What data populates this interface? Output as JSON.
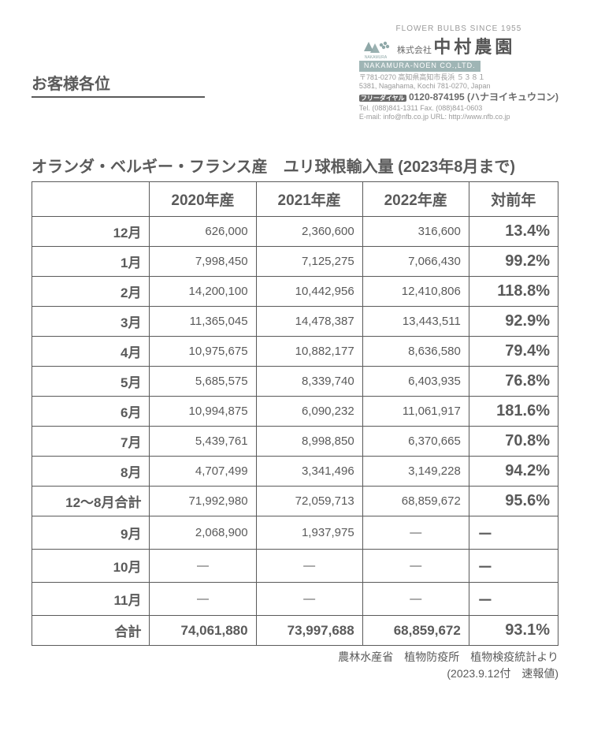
{
  "header": {
    "salutation": "お客様各位",
    "company": {
      "since": "FLOWER  BULBS  SINCE  1955",
      "prefix": "株式会社",
      "kanji": "中村農園",
      "en": "NAKAMURA-NOEN  CO.,LTD.",
      "addr1": "〒781-0270  高知県高知市長浜  ５３８１",
      "addr2": "5381, Nagahama, Kochi 781-0270, Japan",
      "tel_main": "0120-874195 (ハナヨイキュウコン)",
      "tel_sub": "Tel. (088)841-1311  Fax. (088)841-0603",
      "mail": "E-mail: info@nfb.co.jp  URL: http://www.nfb.co.jp"
    }
  },
  "title": "オランダ・ベルギー・フランス産　ユリ球根輸入量 (2023年8月まで)",
  "table": {
    "columns": [
      "",
      "2020年産",
      "2021年産",
      "2022年産",
      "対前年"
    ],
    "rows": [
      {
        "label": "12月",
        "c1": "626,000",
        "c2": "2,360,600",
        "c3": "316,600",
        "yoy": "13.4%",
        "bold": false
      },
      {
        "label": "1月",
        "c1": "7,998,450",
        "c2": "7,125,275",
        "c3": "7,066,430",
        "yoy": "99.2%",
        "bold": false
      },
      {
        "label": "2月",
        "c1": "14,200,100",
        "c2": "10,442,956",
        "c3": "12,410,806",
        "yoy": "118.8%",
        "bold": false
      },
      {
        "label": "3月",
        "c1": "11,365,045",
        "c2": "14,478,387",
        "c3": "13,443,511",
        "yoy": "92.9%",
        "bold": false
      },
      {
        "label": "4月",
        "c1": "10,975,675",
        "c2": "10,882,177",
        "c3": "8,636,580",
        "yoy": "79.4%",
        "bold": false
      },
      {
        "label": "5月",
        "c1": "5,685,575",
        "c2": "8,339,740",
        "c3": "6,403,935",
        "yoy": "76.8%",
        "bold": false
      },
      {
        "label": "6月",
        "c1": "10,994,875",
        "c2": "6,090,232",
        "c3": "11,061,917",
        "yoy": "181.6%",
        "bold": false
      },
      {
        "label": "7月",
        "c1": "5,439,761",
        "c2": "8,998,850",
        "c3": "6,370,665",
        "yoy": "70.8%",
        "bold": false
      },
      {
        "label": "8月",
        "c1": "4,707,499",
        "c2": "3,341,496",
        "c3": "3,149,228",
        "yoy": "94.2%",
        "bold": false
      },
      {
        "label": "12～8月合計",
        "c1": "71,992,980",
        "c2": "72,059,713",
        "c3": "68,859,672",
        "yoy": "95.6%",
        "bold": false
      },
      {
        "label": "9月",
        "c1": "2,068,900",
        "c2": "1,937,975",
        "c3": "―",
        "yoy": "－",
        "bold": false,
        "c3dash": true,
        "yoydash": true
      },
      {
        "label": "10月",
        "c1": "―",
        "c2": "―",
        "c3": "―",
        "yoy": "－",
        "bold": false,
        "c1dash": true,
        "c2dash": true,
        "c3dash": true,
        "yoydash": true
      },
      {
        "label": "11月",
        "c1": "―",
        "c2": "―",
        "c3": "―",
        "yoy": "－",
        "bold": false,
        "c1dash": true,
        "c2dash": true,
        "c3dash": true,
        "yoydash": true
      },
      {
        "label": "合計",
        "c1": "74,061,880",
        "c2": "73,997,688",
        "c3": "68,859,672",
        "yoy": "93.1%",
        "bold": true
      }
    ]
  },
  "source": {
    "line1": "農林水産省　植物防疫所　植物検疫統計より",
    "line2": "(2023.9.12付　速報値)"
  },
  "colors": {
    "text": "#5a5a5a",
    "border": "#5a5a5a",
    "faded": "#9a9a9a",
    "bar": "#9fb5b5",
    "background": "#ffffff"
  }
}
